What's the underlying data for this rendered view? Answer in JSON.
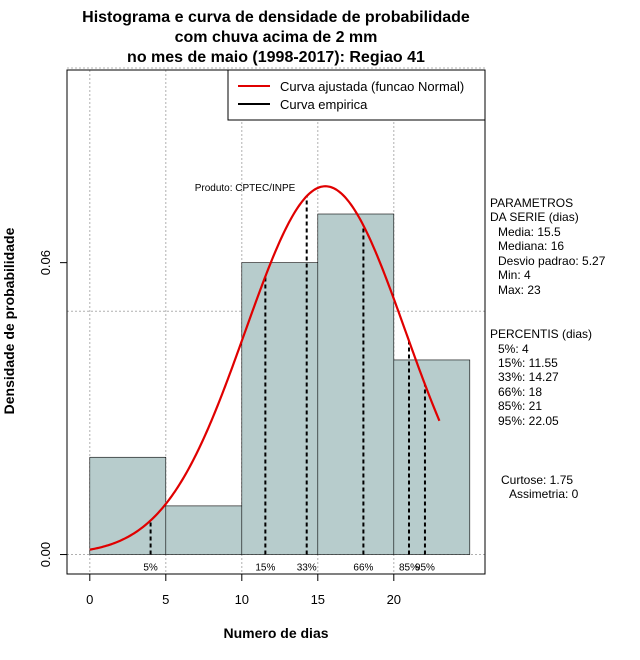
{
  "chart_data": {
    "type": "bar",
    "title_lines": [
      "Histograma e curva de densidade de probabilidade",
      "com chuva acima de 2 mm",
      "no mes de maio (1998-2017): Regiao 41"
    ],
    "xlabel": "Numero de dias",
    "ylabel": "Densidade de probabilidade",
    "xlim": [
      -1.5,
      26
    ],
    "ylim": [
      -0.004,
      0.0996
    ],
    "x_ticks": [
      0,
      5,
      10,
      15,
      20
    ],
    "y_ticks": [
      0.0,
      0.06
    ],
    "y_tick_labels": [
      "0.00",
      "0.06"
    ],
    "grid_x": [
      0,
      5,
      10,
      15,
      20
    ],
    "grid_y": [
      0.0,
      0.05,
      0.1
    ],
    "bins": [
      {
        "start": 0,
        "end": 5,
        "density": 0.02
      },
      {
        "start": 5,
        "end": 10,
        "density": 0.01
      },
      {
        "start": 10,
        "end": 15,
        "density": 0.06
      },
      {
        "start": 15,
        "end": 20,
        "density": 0.07
      },
      {
        "start": 20,
        "end": 25,
        "density": 0.04
      }
    ],
    "normal_curve": {
      "mean": 15.5,
      "sd": 5.27,
      "x_from": 0,
      "x_to": 23,
      "label": "Curva ajustada (funcao Normal)",
      "color": "#e00000"
    },
    "empirical_label": "Curva empirica",
    "percentiles": [
      {
        "label": "5%",
        "value": 4
      },
      {
        "label": "15%",
        "value": 11.55
      },
      {
        "label": "33%",
        "value": 14.27
      },
      {
        "label": "66%",
        "value": 18
      },
      {
        "label": "85%",
        "value": 21
      },
      {
        "label": "95%",
        "value": 22.05
      }
    ],
    "product_label": "Produto: CPTEC/INPE",
    "legend_position": "top-right",
    "bar_color": "#b7cccc"
  },
  "side_panel": {
    "params_title_1": "PARAMETROS",
    "params_title_2": "DA SERIE (dias)",
    "media": "Media: 15.5",
    "mediana": "Mediana: 16",
    "desvio": "Desvio padrao: 5.27",
    "min": "Min: 4",
    "max": "Max: 23",
    "percentis_title": "PERCENTIS (dias)",
    "p5": "5%: 4",
    "p15": "15%: 11.55",
    "p33": "33%: 14.27",
    "p66": "66%: 18",
    "p85": "85%: 21",
    "p95": "95%: 22.05",
    "curtose": "Curtose: 1.75",
    "assimetria": "Assimetria: 0"
  }
}
